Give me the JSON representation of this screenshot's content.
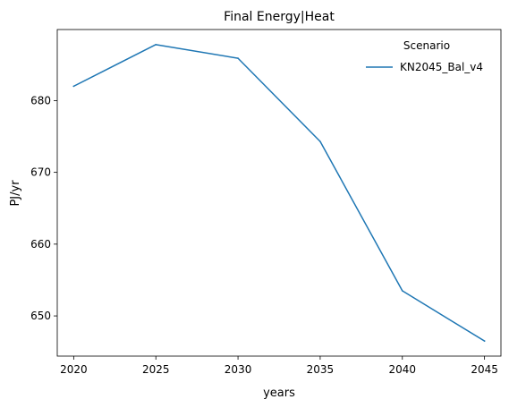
{
  "chart_data": {
    "type": "line",
    "title": "Final Energy|Heat",
    "xlabel": "years",
    "ylabel": "PJ/yr",
    "x": [
      2020,
      2025,
      2030,
      2035,
      2040,
      2045
    ],
    "series": [
      {
        "name": "KN2045_Bal_v4",
        "values": [
          682.0,
          687.8,
          685.9,
          674.3,
          653.5,
          646.5
        ],
        "color": "#1f77b4"
      }
    ],
    "xticks": [
      2020,
      2025,
      2030,
      2035,
      2040,
      2045
    ],
    "yticks": [
      650,
      660,
      670,
      680
    ],
    "xlim": [
      2019,
      2046
    ],
    "ylim": [
      644.4,
      689.9
    ],
    "legend_title": "Scenario",
    "legend_position": "top-right",
    "grid": false
  }
}
